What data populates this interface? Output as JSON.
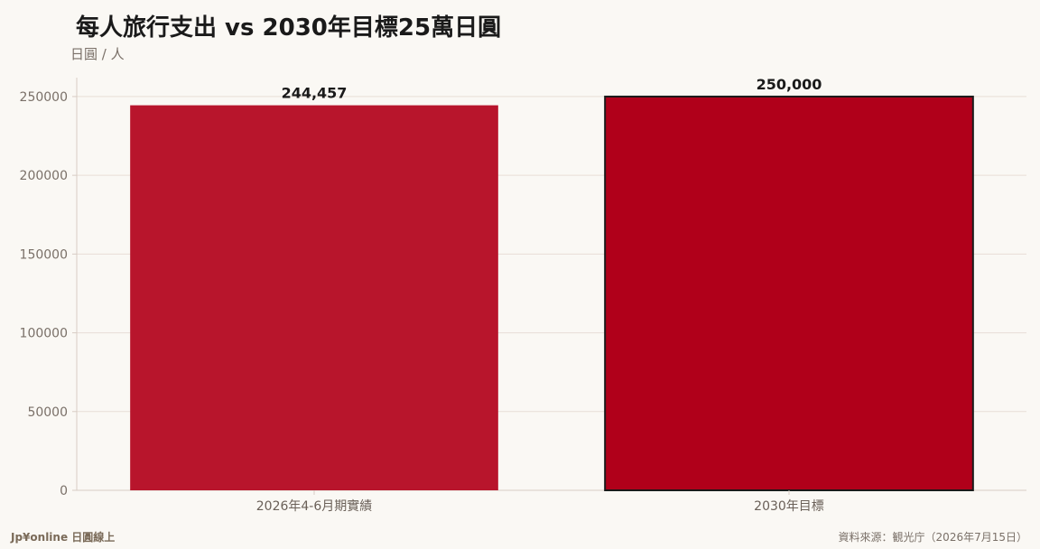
{
  "header": {
    "title": "每人旅行支出 vs 2030年目標25萬日圓",
    "subtitle": "日圓 / 人"
  },
  "footer": {
    "brand": "Jp¥online 日圓線上",
    "source": "資料來源：観光庁（2026年7月15日）"
  },
  "colors": {
    "bar_actual": "#b8152c",
    "bar_target": "#b0001a",
    "target_border": "#1a1a1a",
    "grid": "#e8ddd6",
    "axis": "#d8ccc4"
  },
  "chart_data": {
    "type": "bar",
    "title": "每人旅行支出 vs 2030年目標25萬日圓",
    "ylabel": "日圓 / 人",
    "xlabel": "",
    "categories": [
      "2026年4-6月期實績",
      "2030年目標"
    ],
    "values": [
      244457,
      250000
    ],
    "data_labels": [
      "244,457",
      "250,000"
    ],
    "ylim": [
      0,
      262000
    ],
    "yticks": [
      0,
      50000,
      100000,
      150000,
      200000,
      250000
    ],
    "ytick_labels": [
      "0",
      "50000",
      "100000",
      "150000",
      "200000",
      "250000"
    ],
    "grid": true,
    "legend": "none"
  }
}
